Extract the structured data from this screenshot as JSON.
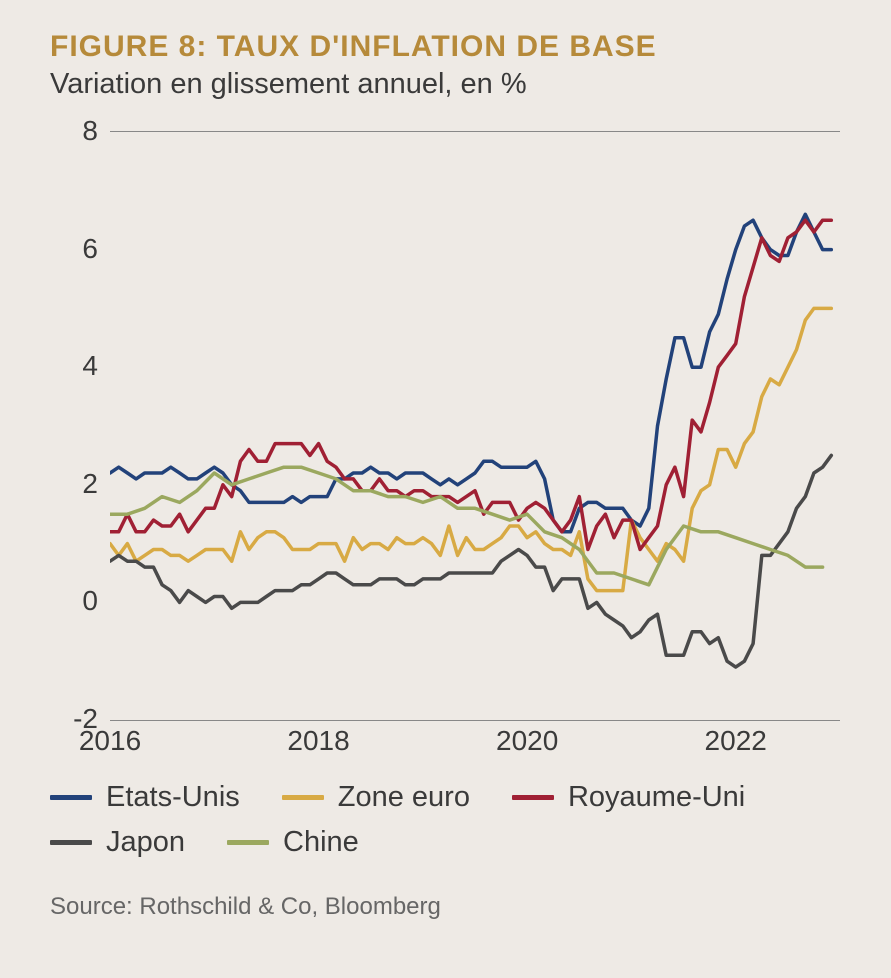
{
  "title": "FIGURE 8: TAUX D'INFLATION DE BASE",
  "subtitle": "Variation en glissement annuel, en %",
  "source": "Source: Rothschild & Co, Bloomberg",
  "chart": {
    "type": "line",
    "background_color": "#eeeae5",
    "title_color": "#b68a3a",
    "title_fontsize": 30,
    "subtitle_fontsize": 29,
    "axis_fontsize": 28,
    "legend_fontsize": 29,
    "source_fontsize": 24,
    "text_color": "#3a3a3a",
    "border_color": "#888888",
    "line_width": 3.5,
    "x_domain": [
      2016,
      2023
    ],
    "y_domain": [
      -2,
      8
    ],
    "y_ticks": [
      -2,
      0,
      2,
      4,
      6,
      8
    ],
    "x_ticks": [
      2016,
      2018,
      2020,
      2022
    ],
    "legend": {
      "swatch_width": 42,
      "swatch_height": 5
    },
    "series": [
      {
        "name": "Etats-Unis",
        "color": "#22427a",
        "x": [
          2016.0,
          2016.083,
          2016.167,
          2016.25,
          2016.333,
          2016.417,
          2016.5,
          2016.583,
          2016.667,
          2016.75,
          2016.833,
          2016.917,
          2017.0,
          2017.083,
          2017.167,
          2017.25,
          2017.333,
          2017.417,
          2017.5,
          2017.583,
          2017.667,
          2017.75,
          2017.833,
          2017.917,
          2018.0,
          2018.083,
          2018.167,
          2018.25,
          2018.333,
          2018.417,
          2018.5,
          2018.583,
          2018.667,
          2018.75,
          2018.833,
          2018.917,
          2019.0,
          2019.083,
          2019.167,
          2019.25,
          2019.333,
          2019.417,
          2019.5,
          2019.583,
          2019.667,
          2019.75,
          2019.833,
          2019.917,
          2020.0,
          2020.083,
          2020.167,
          2020.25,
          2020.333,
          2020.417,
          2020.5,
          2020.583,
          2020.667,
          2020.75,
          2020.833,
          2020.917,
          2021.0,
          2021.083,
          2021.167,
          2021.25,
          2021.333,
          2021.417,
          2021.5,
          2021.583,
          2021.667,
          2021.75,
          2021.833,
          2021.917,
          2022.0,
          2022.083,
          2022.167,
          2022.25,
          2022.333,
          2022.417,
          2022.5,
          2022.583,
          2022.667,
          2022.75,
          2022.833,
          2022.917
        ],
        "y": [
          2.2,
          2.3,
          2.2,
          2.1,
          2.2,
          2.2,
          2.2,
          2.3,
          2.2,
          2.1,
          2.1,
          2.2,
          2.3,
          2.2,
          2.0,
          1.9,
          1.7,
          1.7,
          1.7,
          1.7,
          1.7,
          1.8,
          1.7,
          1.8,
          1.8,
          1.8,
          2.1,
          2.1,
          2.2,
          2.2,
          2.3,
          2.2,
          2.2,
          2.1,
          2.2,
          2.2,
          2.2,
          2.1,
          2.0,
          2.1,
          2.0,
          2.1,
          2.2,
          2.4,
          2.4,
          2.3,
          2.3,
          2.3,
          2.3,
          2.4,
          2.1,
          1.4,
          1.2,
          1.2,
          1.6,
          1.7,
          1.7,
          1.6,
          1.6,
          1.6,
          1.4,
          1.3,
          1.6,
          3.0,
          3.8,
          4.5,
          4.5,
          4.0,
          4.0,
          4.6,
          4.9,
          5.5,
          6.0,
          6.4,
          6.5,
          6.2,
          6.0,
          5.9,
          5.9,
          6.3,
          6.6,
          6.3,
          6.0,
          6.0
        ]
      },
      {
        "name": "Zone euro",
        "color": "#d8aa44",
        "x": [
          2016.0,
          2016.083,
          2016.167,
          2016.25,
          2016.333,
          2016.417,
          2016.5,
          2016.583,
          2016.667,
          2016.75,
          2016.833,
          2016.917,
          2017.0,
          2017.083,
          2017.167,
          2017.25,
          2017.333,
          2017.417,
          2017.5,
          2017.583,
          2017.667,
          2017.75,
          2017.833,
          2017.917,
          2018.0,
          2018.083,
          2018.167,
          2018.25,
          2018.333,
          2018.417,
          2018.5,
          2018.583,
          2018.667,
          2018.75,
          2018.833,
          2018.917,
          2019.0,
          2019.083,
          2019.167,
          2019.25,
          2019.333,
          2019.417,
          2019.5,
          2019.583,
          2019.667,
          2019.75,
          2019.833,
          2019.917,
          2020.0,
          2020.083,
          2020.167,
          2020.25,
          2020.333,
          2020.417,
          2020.5,
          2020.583,
          2020.667,
          2020.75,
          2020.833,
          2020.917,
          2021.0,
          2021.083,
          2021.167,
          2021.25,
          2021.333,
          2021.417,
          2021.5,
          2021.583,
          2021.667,
          2021.75,
          2021.833,
          2021.917,
          2022.0,
          2022.083,
          2022.167,
          2022.25,
          2022.333,
          2022.417,
          2022.5,
          2022.583,
          2022.667,
          2022.75,
          2022.833,
          2022.917
        ],
        "y": [
          1.0,
          0.8,
          1.0,
          0.7,
          0.8,
          0.9,
          0.9,
          0.8,
          0.8,
          0.7,
          0.8,
          0.9,
          0.9,
          0.9,
          0.7,
          1.2,
          0.9,
          1.1,
          1.2,
          1.2,
          1.1,
          0.9,
          0.9,
          0.9,
          1.0,
          1.0,
          1.0,
          0.7,
          1.1,
          0.9,
          1.0,
          1.0,
          0.9,
          1.1,
          1.0,
          1.0,
          1.1,
          1.0,
          0.8,
          1.3,
          0.8,
          1.1,
          0.9,
          0.9,
          1.0,
          1.1,
          1.3,
          1.3,
          1.1,
          1.2,
          1.0,
          0.9,
          0.9,
          0.8,
          1.2,
          0.4,
          0.2,
          0.2,
          0.2,
          0.2,
          1.4,
          1.1,
          0.9,
          0.7,
          1.0,
          0.9,
          0.7,
          1.6,
          1.9,
          2.0,
          2.6,
          2.6,
          2.3,
          2.7,
          2.9,
          3.5,
          3.8,
          3.7,
          4.0,
          4.3,
          4.8,
          5.0,
          5.0,
          5.0
        ]
      },
      {
        "name": "Royaume-Uni",
        "color": "#a02034",
        "x": [
          2016.0,
          2016.083,
          2016.167,
          2016.25,
          2016.333,
          2016.417,
          2016.5,
          2016.583,
          2016.667,
          2016.75,
          2016.833,
          2016.917,
          2017.0,
          2017.083,
          2017.167,
          2017.25,
          2017.333,
          2017.417,
          2017.5,
          2017.583,
          2017.667,
          2017.75,
          2017.833,
          2017.917,
          2018.0,
          2018.083,
          2018.167,
          2018.25,
          2018.333,
          2018.417,
          2018.5,
          2018.583,
          2018.667,
          2018.75,
          2018.833,
          2018.917,
          2019.0,
          2019.083,
          2019.167,
          2019.25,
          2019.333,
          2019.417,
          2019.5,
          2019.583,
          2019.667,
          2019.75,
          2019.833,
          2019.917,
          2020.0,
          2020.083,
          2020.167,
          2020.25,
          2020.333,
          2020.417,
          2020.5,
          2020.583,
          2020.667,
          2020.75,
          2020.833,
          2020.917,
          2021.0,
          2021.083,
          2021.167,
          2021.25,
          2021.333,
          2021.417,
          2021.5,
          2021.583,
          2021.667,
          2021.75,
          2021.833,
          2021.917,
          2022.0,
          2022.083,
          2022.167,
          2022.25,
          2022.333,
          2022.417,
          2022.5,
          2022.583,
          2022.667,
          2022.75,
          2022.833,
          2022.917
        ],
        "y": [
          1.2,
          1.2,
          1.5,
          1.2,
          1.2,
          1.4,
          1.3,
          1.3,
          1.5,
          1.2,
          1.4,
          1.6,
          1.6,
          2.0,
          1.8,
          2.4,
          2.6,
          2.4,
          2.4,
          2.7,
          2.7,
          2.7,
          2.7,
          2.5,
          2.7,
          2.4,
          2.3,
          2.1,
          2.1,
          1.9,
          1.9,
          2.1,
          1.9,
          1.9,
          1.8,
          1.9,
          1.9,
          1.8,
          1.8,
          1.8,
          1.7,
          1.8,
          1.9,
          1.5,
          1.7,
          1.7,
          1.7,
          1.4,
          1.6,
          1.7,
          1.6,
          1.4,
          1.2,
          1.4,
          1.8,
          0.9,
          1.3,
          1.5,
          1.1,
          1.4,
          1.4,
          0.9,
          1.1,
          1.3,
          2.0,
          2.3,
          1.8,
          3.1,
          2.9,
          3.4,
          4.0,
          4.2,
          4.4,
          5.2,
          5.7,
          6.2,
          5.9,
          5.8,
          6.2,
          6.3,
          6.5,
          6.3,
          6.5,
          6.5
        ]
      },
      {
        "name": "Japon",
        "color": "#4a4a4a",
        "x": [
          2016.0,
          2016.083,
          2016.167,
          2016.25,
          2016.333,
          2016.417,
          2016.5,
          2016.583,
          2016.667,
          2016.75,
          2016.833,
          2016.917,
          2017.0,
          2017.083,
          2017.167,
          2017.25,
          2017.333,
          2017.417,
          2017.5,
          2017.583,
          2017.667,
          2017.75,
          2017.833,
          2017.917,
          2018.0,
          2018.083,
          2018.167,
          2018.25,
          2018.333,
          2018.417,
          2018.5,
          2018.583,
          2018.667,
          2018.75,
          2018.833,
          2018.917,
          2019.0,
          2019.083,
          2019.167,
          2019.25,
          2019.333,
          2019.417,
          2019.5,
          2019.583,
          2019.667,
          2019.75,
          2019.833,
          2019.917,
          2020.0,
          2020.083,
          2020.167,
          2020.25,
          2020.333,
          2020.417,
          2020.5,
          2020.583,
          2020.667,
          2020.75,
          2020.833,
          2020.917,
          2021.0,
          2021.083,
          2021.167,
          2021.25,
          2021.333,
          2021.417,
          2021.5,
          2021.583,
          2021.667,
          2021.75,
          2021.833,
          2021.917,
          2022.0,
          2022.083,
          2022.167,
          2022.25,
          2022.333,
          2022.417,
          2022.5,
          2022.583,
          2022.667,
          2022.75,
          2022.833,
          2022.917
        ],
        "y": [
          0.7,
          0.8,
          0.7,
          0.7,
          0.6,
          0.6,
          0.3,
          0.2,
          0.0,
          0.2,
          0.1,
          0.0,
          0.1,
          0.1,
          -0.1,
          0.0,
          0.0,
          0.0,
          0.1,
          0.2,
          0.2,
          0.2,
          0.3,
          0.3,
          0.4,
          0.5,
          0.5,
          0.4,
          0.3,
          0.3,
          0.3,
          0.4,
          0.4,
          0.4,
          0.3,
          0.3,
          0.4,
          0.4,
          0.4,
          0.5,
          0.5,
          0.5,
          0.5,
          0.5,
          0.5,
          0.7,
          0.8,
          0.9,
          0.8,
          0.6,
          0.6,
          0.2,
          0.4,
          0.4,
          0.4,
          -0.1,
          0.0,
          -0.2,
          -0.3,
          -0.4,
          -0.6,
          -0.5,
          -0.3,
          -0.2,
          -0.9,
          -0.9,
          -0.9,
          -0.5,
          -0.5,
          -0.7,
          -0.6,
          -1.0,
          -1.1,
          -1.0,
          -0.7,
          0.8,
          0.8,
          1.0,
          1.2,
          1.6,
          1.8,
          2.2,
          2.3,
          2.5
        ]
      },
      {
        "name": "Chine",
        "color": "#9ba85f",
        "x": [
          2016.0,
          2016.167,
          2016.333,
          2016.5,
          2016.667,
          2016.833,
          2017.0,
          2017.167,
          2017.333,
          2017.5,
          2017.667,
          2017.833,
          2018.0,
          2018.167,
          2018.333,
          2018.5,
          2018.667,
          2018.833,
          2019.0,
          2019.167,
          2019.333,
          2019.5,
          2019.667,
          2019.833,
          2020.0,
          2020.167,
          2020.333,
          2020.5,
          2020.667,
          2020.833,
          2021.0,
          2021.167,
          2021.333,
          2021.5,
          2021.667,
          2021.833,
          2022.0,
          2022.167,
          2022.333,
          2022.5,
          2022.667,
          2022.833
        ],
        "y": [
          1.5,
          1.5,
          1.6,
          1.8,
          1.7,
          1.9,
          2.2,
          2.0,
          2.1,
          2.2,
          2.3,
          2.3,
          2.2,
          2.1,
          1.9,
          1.9,
          1.8,
          1.8,
          1.7,
          1.8,
          1.6,
          1.6,
          1.5,
          1.4,
          1.5,
          1.2,
          1.1,
          0.9,
          0.5,
          0.5,
          0.4,
          0.3,
          0.9,
          1.3,
          1.2,
          1.2,
          1.1,
          1.0,
          0.9,
          0.8,
          0.6,
          0.6
        ]
      }
    ]
  }
}
